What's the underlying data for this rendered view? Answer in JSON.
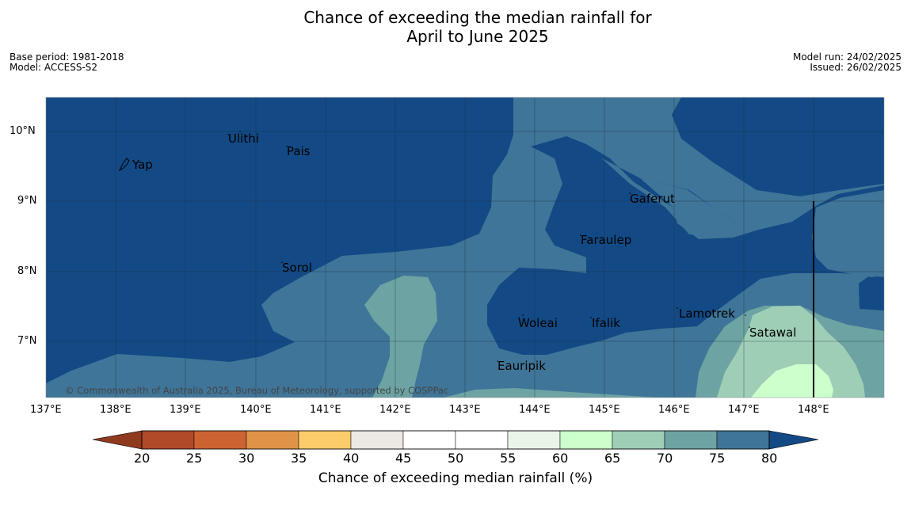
{
  "title_line1": "Chance of exceeding the median rainfall for",
  "title_line2": "April to June 2025",
  "meta_left": [
    "Base period: 1981-2018",
    "Model: ACCESS-S2"
  ],
  "meta_right": [
    "Model run: 24/02/2025",
    "Issued: 26/02/2025"
  ],
  "copyright": "© Commonwealth of Australia 2025, Bureau of Meteorology, supported by COSPPac",
  "lon_ticks": [
    "137°E",
    "138°E",
    "139°E",
    "140°E",
    "141°E",
    "142°E",
    "143°E",
    "144°E",
    "145°E",
    "146°E",
    "147°E",
    "148°E"
  ],
  "lat_ticks": [
    "10°N",
    "9°N",
    "8°N",
    "7°N"
  ],
  "places": [
    "Ulithi",
    "Pais",
    "Yap",
    "Gaferut",
    "Faraulep",
    "Sorol",
    "Lamotrek",
    "Woleai",
    "Ifalik",
    "Satawal",
    "Eauripik"
  ],
  "colorbar": {
    "title": "Chance of exceeding median rainfall (%)",
    "tick_labels": [
      "20",
      "25",
      "30",
      "35",
      "40",
      "45",
      "50",
      "55",
      "60",
      "65",
      "70",
      "75",
      "80"
    ],
    "below_color": "#8f3a1e",
    "above_color": "#134a85",
    "bin_colors": [
      "#b04a28",
      "#cd6332",
      "#e09348",
      "#fccc6a",
      "#ece9e4",
      "#ffffff",
      "#ffffff",
      "#eaf5ea",
      "#ccffcc",
      "#9ecfb6",
      "#6da3a3",
      "#3f7598"
    ]
  },
  "colors": {
    "above_80": "#134a85",
    "c75_80": "#3f7598",
    "c70_75": "#6da3a3",
    "c65_70": "#9ecfb6",
    "c60_65": "#ccffcc"
  }
}
